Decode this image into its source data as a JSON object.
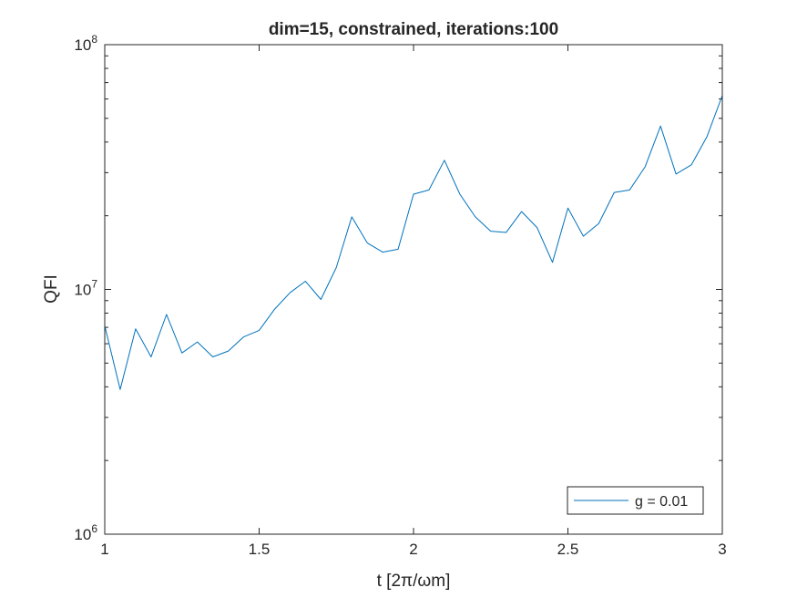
{
  "chart_data": {
    "type": "line",
    "title": "dim=15, constrained, iterations:100",
    "xlabel": "t [2π/ωm]",
    "ylabel": "QFI",
    "xlim": [
      1,
      3
    ],
    "ylim": [
      1000000,
      100000000
    ],
    "yscale": "log",
    "grid": false,
    "legend_position": "bottom-right",
    "x_ticks": [
      {
        "value": 1,
        "label": "1"
      },
      {
        "value": 1.5,
        "label": "1.5"
      },
      {
        "value": 2,
        "label": "2"
      },
      {
        "value": 2.5,
        "label": "2.5"
      },
      {
        "value": 3,
        "label": "3"
      }
    ],
    "y_ticks": [
      {
        "value": 1000000,
        "base": "10",
        "exp": "6"
      },
      {
        "value": 10000000,
        "base": "10",
        "exp": "7"
      },
      {
        "value": 100000000,
        "base": "10",
        "exp": "8"
      }
    ],
    "series": [
      {
        "name": "g = 0.01",
        "color": "#0072BD",
        "x": [
          1.0,
          1.05,
          1.1,
          1.15,
          1.2,
          1.25,
          1.3,
          1.35,
          1.4,
          1.45,
          1.5,
          1.55,
          1.6,
          1.65,
          1.7,
          1.75,
          1.8,
          1.85,
          1.9,
          1.95,
          2.0,
          2.05,
          2.1,
          2.15,
          2.2,
          2.25,
          2.3,
          2.35,
          2.4,
          2.45,
          2.5,
          2.55,
          2.6,
          2.65,
          2.7,
          2.75,
          2.8,
          2.85,
          2.9,
          2.95,
          3.0
        ],
        "values": [
          7100000,
          3900000,
          6900000,
          5300000,
          7900000,
          5500000,
          6100000,
          5300000,
          5600000,
          6400000,
          6800000,
          8300000,
          9700000,
          10800000,
          9100000,
          12300000,
          19800000,
          15500000,
          14200000,
          14600000,
          24500000,
          25500000,
          33700000,
          24500000,
          19800000,
          17300000,
          17100000,
          20800000,
          17900000,
          12900000,
          21500000,
          16500000,
          18600000,
          24900000,
          25500000,
          31700000,
          46500000,
          29600000,
          32300000,
          42000000,
          62000000
        ]
      }
    ]
  }
}
